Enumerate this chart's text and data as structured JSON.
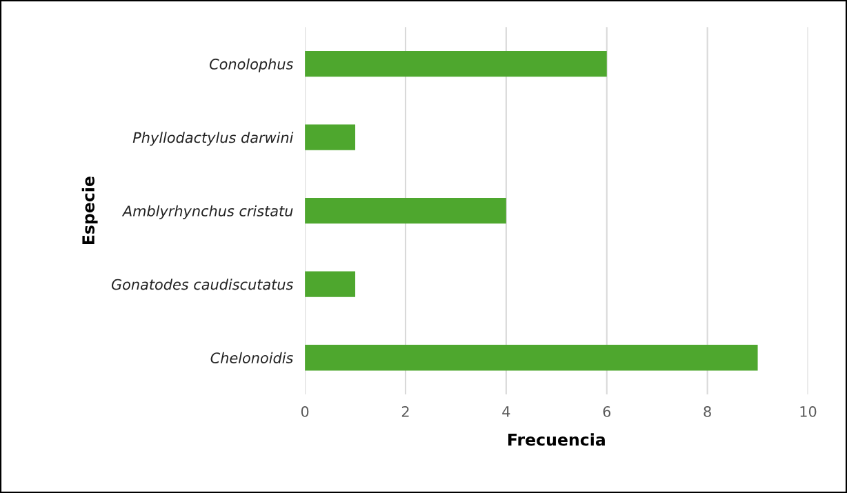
{
  "chart_data": {
    "type": "bar",
    "orientation": "horizontal",
    "xlabel": "Frecuencia",
    "ylabel": "Especie",
    "categories": [
      "Conolophus",
      "Phyllodactylus darwini",
      "Amblyrhynchus cristatu",
      "Gonatodes caudiscutatus",
      "Chelonoidis"
    ],
    "values": [
      6,
      1,
      4,
      1,
      9
    ],
    "color": "#4ea72e",
    "xlim": [
      0,
      10
    ],
    "xticks": [
      0,
      2,
      4,
      6,
      8,
      10
    ],
    "grid": "x",
    "legend": false
  }
}
